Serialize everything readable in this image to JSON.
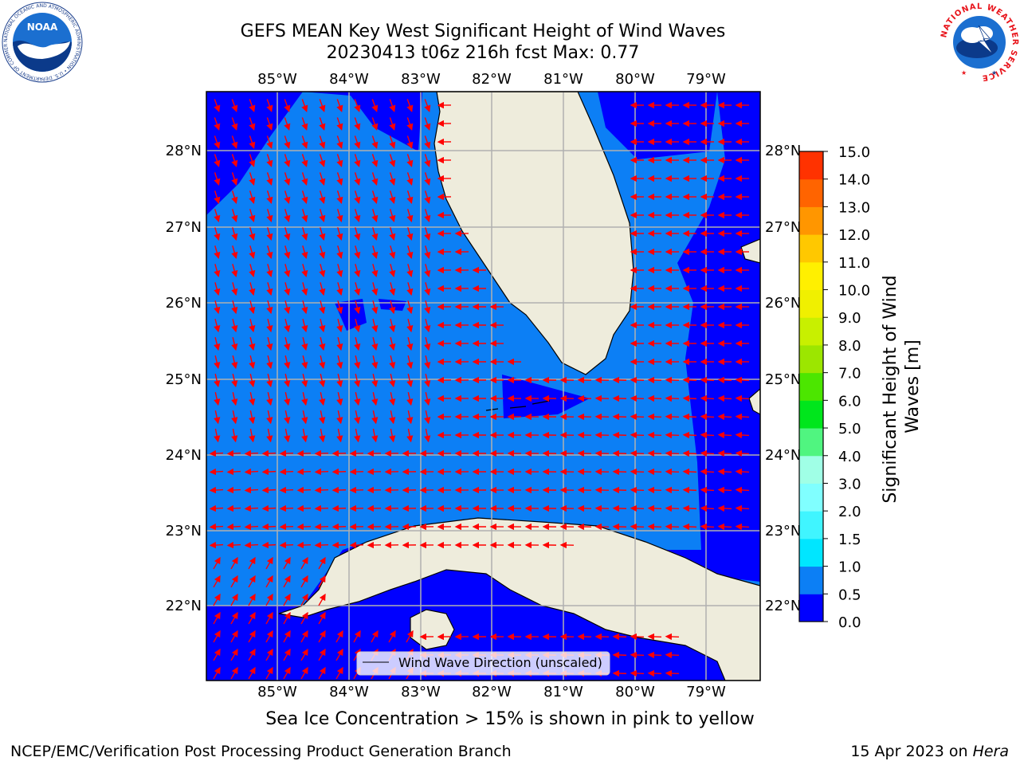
{
  "header": {
    "title_line1": "GEFS MEAN Key West Significant Height of Wind Waves",
    "title_line2": "20230413 t06z 216h fcst   Max: 0.77"
  },
  "logos": {
    "left": {
      "name": "NOAA",
      "ring_text": "NATIONAL OCEANIC AND ATMOSPHERIC ADMINISTRATION • U.S. DEPARTMENT OF COMMERCE"
    },
    "right": {
      "ring_text": "NATIONAL WEATHER SERVICE"
    }
  },
  "map": {
    "lon_labels": [
      "85°W",
      "84°W",
      "83°W",
      "82°W",
      "81°W",
      "80°W",
      "79°W"
    ],
    "lat_labels": [
      "22°N",
      "23°N",
      "24°N",
      "25°N",
      "26°N",
      "27°N",
      "28°N"
    ],
    "legend_label": "Wind Wave Direction (unscaled)",
    "colors": {
      "deep_blue": "#0000ff",
      "mid_blue": "#0c7ff5",
      "land": "#eeecdc",
      "arrow": "#ff0000",
      "grid": "#b0b0b0"
    }
  },
  "colorbar": {
    "label": "Significant Height of Wind Waves [m]",
    "ticks": [
      "0.0",
      "0.5",
      "1.0",
      "1.5",
      "2.0",
      "3.0",
      "4.0",
      "5.0",
      "6.0",
      "7.0",
      "8.0",
      "9.0",
      "10.0",
      "11.0",
      "12.0",
      "13.0",
      "14.0",
      "15.0"
    ],
    "colors": [
      "#0000ff",
      "#0c7ff5",
      "#00e6ff",
      "#40f5ff",
      "#80ffff",
      "#a0ffe6",
      "#50f580",
      "#00e61c",
      "#4ce600",
      "#9ce600",
      "#c8f000",
      "#f0f000",
      "#fff000",
      "#ffc800",
      "#ff9600",
      "#ff6400",
      "#ff3200",
      "#ff0000"
    ]
  },
  "footer": {
    "sea_ice_note": "Sea Ice Concentration > 15% is shown in pink to yellow",
    "credit": "NCEP/EMC/Verification Post Processing Product Generation Branch",
    "date": "15 Apr 2023 on",
    "machine": "Hera"
  }
}
